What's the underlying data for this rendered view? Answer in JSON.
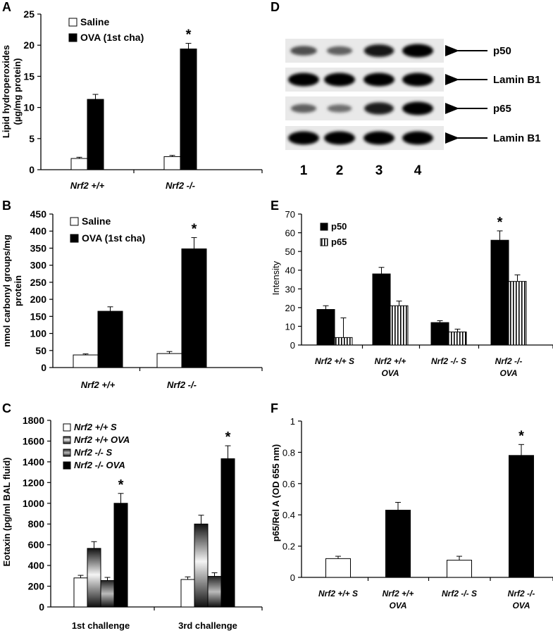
{
  "panels": {
    "A": "A",
    "B": "B",
    "C": "C",
    "D": "D",
    "E": "E",
    "F": "F"
  },
  "chart_data": [
    {
      "panel": "A",
      "type": "bar",
      "ylabel": "Lipid hydroperoxides (µg/mg protein)",
      "ylim": [
        0,
        25
      ],
      "yticks": [
        0,
        5,
        10,
        15,
        20,
        25
      ],
      "categories": [
        "Nrf2 +/+",
        "Nrf2 -/-"
      ],
      "series": [
        {
          "name": "Saline",
          "values": [
            1.8,
            2.1
          ],
          "errors": [
            0.2,
            0.2
          ],
          "fill": "#ffffff"
        },
        {
          "name": "OVA (1st cha)",
          "values": [
            11.3,
            19.4
          ],
          "errors": [
            0.8,
            0.9
          ],
          "fill": "#000000"
        }
      ],
      "annotations": [
        {
          "category": 1,
          "series": 1,
          "text": "*"
        }
      ],
      "legend": "top-left",
      "grid": false
    },
    {
      "panel": "B",
      "type": "bar",
      "ylabel": "nmol carbonyl groups/mg protein",
      "ylim": [
        0,
        450
      ],
      "yticks": [
        0,
        50,
        100,
        150,
        200,
        250,
        300,
        350,
        400,
        450
      ],
      "categories": [
        "Nrf2 +/+",
        "Nrf2 -/-"
      ],
      "series": [
        {
          "name": "Saline",
          "values": [
            37,
            41
          ],
          "errors": [
            3,
            6
          ],
          "fill": "#ffffff"
        },
        {
          "name": "OVA (1st cha)",
          "values": [
            165,
            348
          ],
          "errors": [
            13,
            33
          ],
          "fill": "#000000"
        }
      ],
      "annotations": [
        {
          "category": 1,
          "series": 1,
          "text": "*"
        }
      ],
      "legend": "top-left",
      "grid": false
    },
    {
      "panel": "C",
      "type": "bar",
      "ylabel": "Eotaxin (pg/ml BAL fluid)",
      "ylim": [
        0,
        1800
      ],
      "yticks": [
        0,
        200,
        400,
        600,
        800,
        1000,
        1200,
        1400,
        1600,
        1800
      ],
      "categories": [
        "1st challenge",
        "3rd challenge"
      ],
      "series": [
        {
          "name": "Nrf2 +/+ S",
          "values": [
            280,
            265
          ],
          "errors": [
            25,
            25
          ],
          "fill": "white"
        },
        {
          "name": "Nrf2 +/+ OVA",
          "values": [
            565,
            800
          ],
          "errors": [
            65,
            85
          ],
          "fill": "gradA"
        },
        {
          "name": "Nrf2 -/- S",
          "values": [
            255,
            295
          ],
          "errors": [
            30,
            35
          ],
          "fill": "gradB"
        },
        {
          "name": "Nrf2 -/- OVA",
          "values": [
            1000,
            1430
          ],
          "errors": [
            95,
            125
          ],
          "fill": "#000000"
        }
      ],
      "annotations": [
        {
          "category": 0,
          "series": 3,
          "text": "*"
        },
        {
          "category": 1,
          "series": 3,
          "text": "*"
        }
      ],
      "legend": "top-left",
      "grid": false
    },
    {
      "panel": "E",
      "type": "bar",
      "ylabel": "Intensity",
      "ylim": [
        0,
        70
      ],
      "yticks": [
        0,
        10,
        20,
        30,
        40,
        50,
        60,
        70
      ],
      "categories": [
        [
          "Nrf2 +/+ S"
        ],
        [
          "Nrf2 +/+",
          "OVA"
        ],
        [
          "Nrf2 -/- S"
        ],
        [
          "Nrf2 -/-",
          "OVA"
        ]
      ],
      "series": [
        {
          "name": "p50",
          "values": [
            19,
            38,
            12,
            56
          ],
          "errors": [
            2,
            3.5,
            1,
            5
          ],
          "fill": "#000000"
        },
        {
          "name": "p65",
          "values": [
            4,
            21,
            7,
            34
          ],
          "errors": [
            10.5,
            2.5,
            1.5,
            3.5
          ],
          "fill": "stripes"
        }
      ],
      "annotations": [
        {
          "category": 3,
          "series": 0,
          "text": "*"
        }
      ],
      "legend": "top-left",
      "grid": false
    },
    {
      "panel": "F",
      "type": "bar",
      "ylabel": "p65/Rel A (OD 655 nm)",
      "ylim": [
        0,
        1
      ],
      "yticks": [
        "0",
        "0.2",
        "0.4",
        "0.6",
        "0.8",
        "1"
      ],
      "categories": [
        [
          "Nrf2 +/+ S"
        ],
        [
          "Nrf2 +/+",
          "OVA"
        ],
        [
          "Nrf2 -/- S"
        ],
        [
          "Nrf2 -/-",
          "OVA"
        ]
      ],
      "series": [
        {
          "name": "",
          "values": [
            0.12,
            0.43,
            0.11,
            0.78
          ],
          "errors": [
            0.015,
            0.05,
            0.025,
            0.07
          ],
          "fills": [
            "#ffffff",
            "#000000",
            "#ffffff",
            "#000000"
          ]
        }
      ],
      "annotations": [
        {
          "category": 3,
          "series": 0,
          "text": "*"
        }
      ],
      "grid": false
    }
  ],
  "blot": {
    "panel": "D",
    "rows": [
      {
        "label": "p50",
        "intensities": [
          0.55,
          0.45,
          0.9,
          1.0
        ]
      },
      {
        "label": "Lamin B1",
        "intensities": [
          1.0,
          1.0,
          1.0,
          1.0
        ]
      },
      {
        "label": "p65",
        "intensities": [
          0.45,
          0.35,
          0.85,
          1.0
        ]
      },
      {
        "label": "Lamin B1",
        "intensities": [
          1.0,
          1.0,
          1.0,
          1.0
        ]
      }
    ],
    "lanes": [
      "1",
      "2",
      "3",
      "4"
    ]
  }
}
